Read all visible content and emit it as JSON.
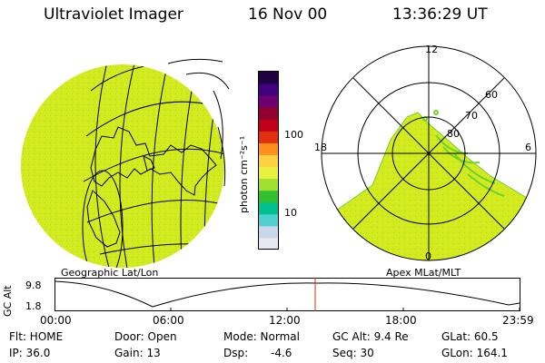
{
  "header": {
    "title": "Ultraviolet Imager",
    "date": "16 Nov 00",
    "time": "13:36:29 UT"
  },
  "colorbar": {
    "unit_label": "photon cm⁻²s⁻¹",
    "scale": "log",
    "ticks": [
      "100",
      "10"
    ],
    "colors": [
      "#e8e8f0",
      "#c8d8e8",
      "#50d0d0",
      "#00c090",
      "#30c030",
      "#a0e030",
      "#e8f040",
      "#ffd040",
      "#ff9020",
      "#e03010",
      "#c00018",
      "#900030",
      "#700070",
      "#400080",
      "#200040"
    ]
  },
  "panels": {
    "geo_label": "Geographic Lat/Lon",
    "apex_label": "Apex MLat/MLT"
  },
  "polar": {
    "mlt_labels": [
      "12",
      "18",
      "6",
      "0"
    ],
    "lat_labels": [
      "60",
      "70",
      "80"
    ]
  },
  "altitude_plot": {
    "y_axis_label": "GC Alt",
    "y_ticks": [
      "9.8",
      "1.8"
    ],
    "x_ticks": [
      "00:00",
      "06:00",
      "12:00",
      "18:00",
      "23:59"
    ]
  },
  "info": {
    "flt": "Flt: HOME",
    "door": "Door: Open",
    "mode": "Mode: Normal",
    "gc_alt": "GC Alt: 9.4 Re",
    "glat": "GLat: 60.5",
    "ip": "IP: 36.0",
    "gain": "Gain: 13",
    "dsp_label": "Dsp:",
    "dsp_value": "-4.6",
    "seq": "Seq: 30",
    "glon": "GLon: 164.1"
  },
  "colors": {
    "image_fill": "#d2ea1e",
    "marker": "#d03010"
  }
}
